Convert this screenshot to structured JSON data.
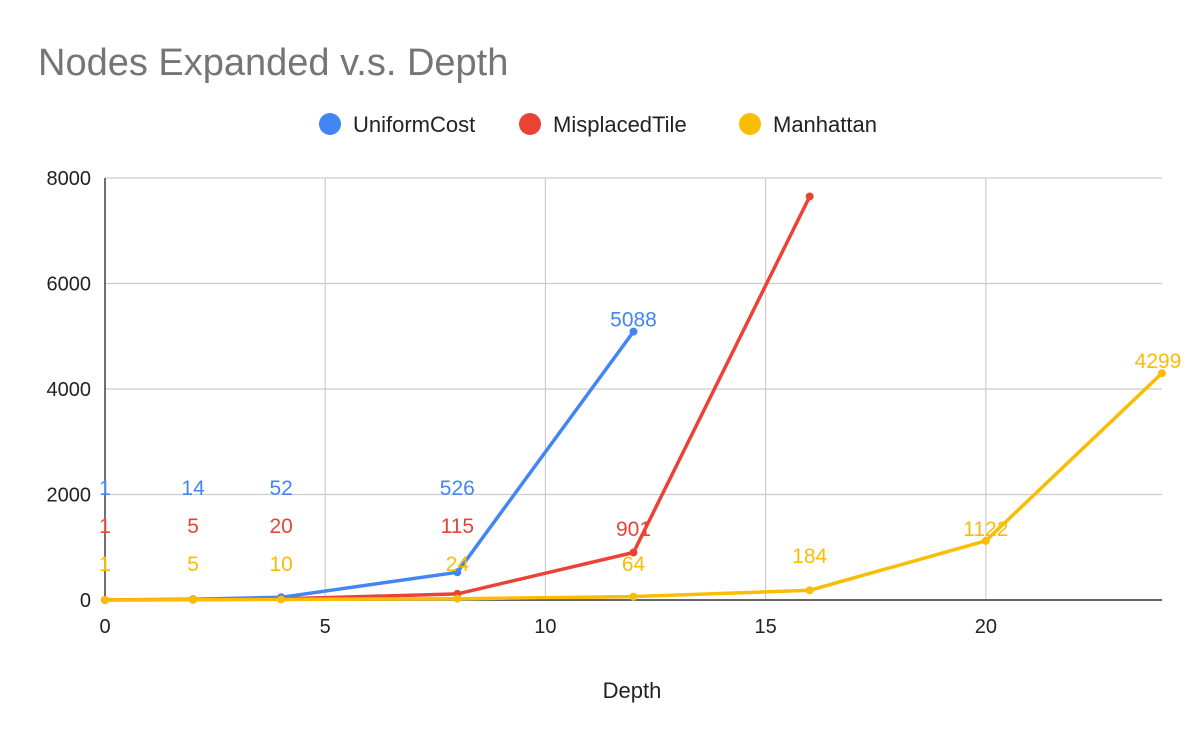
{
  "chart_data": {
    "type": "line",
    "title": "Nodes Expanded v.s. Depth",
    "xlabel": "Depth",
    "ylabel": "",
    "xlim": [
      0,
      24
    ],
    "ylim": [
      0,
      8000
    ],
    "xticks": [
      0,
      5,
      10,
      15,
      20
    ],
    "yticks": [
      0,
      2000,
      4000,
      6000,
      8000
    ],
    "grid": true,
    "legend_position": "top",
    "series": [
      {
        "name": "UniformCost",
        "color": "#4285F4",
        "points": [
          {
            "x": 0,
            "y": 1,
            "label": "1"
          },
          {
            "x": 2,
            "y": 14,
            "label": "14"
          },
          {
            "x": 4,
            "y": 52,
            "label": "52"
          },
          {
            "x": 8,
            "y": 526,
            "label": "526"
          },
          {
            "x": 12,
            "y": 5088,
            "label": "5088"
          }
        ]
      },
      {
        "name": "MisplacedTile",
        "color": "#EA4335",
        "points": [
          {
            "x": 0,
            "y": 1,
            "label": "1"
          },
          {
            "x": 2,
            "y": 5,
            "label": "5"
          },
          {
            "x": 4,
            "y": 20,
            "label": "20"
          },
          {
            "x": 8,
            "y": 115,
            "label": "115"
          },
          {
            "x": 12,
            "y": 901,
            "label": "901"
          },
          {
            "x": 16,
            "y": 7650,
            "label": ""
          }
        ]
      },
      {
        "name": "Manhattan",
        "color": "#FBBC04",
        "points": [
          {
            "x": 0,
            "y": 1,
            "label": "1"
          },
          {
            "x": 2,
            "y": 5,
            "label": "5"
          },
          {
            "x": 4,
            "y": 10,
            "label": "10"
          },
          {
            "x": 8,
            "y": 24,
            "label": "24"
          },
          {
            "x": 12,
            "y": 64,
            "label": "64"
          },
          {
            "x": 16,
            "y": 184,
            "label": "184"
          },
          {
            "x": 20,
            "y": 1122,
            "label": "1122"
          },
          {
            "x": 24,
            "y": 4299,
            "label": "4299"
          }
        ]
      }
    ]
  }
}
